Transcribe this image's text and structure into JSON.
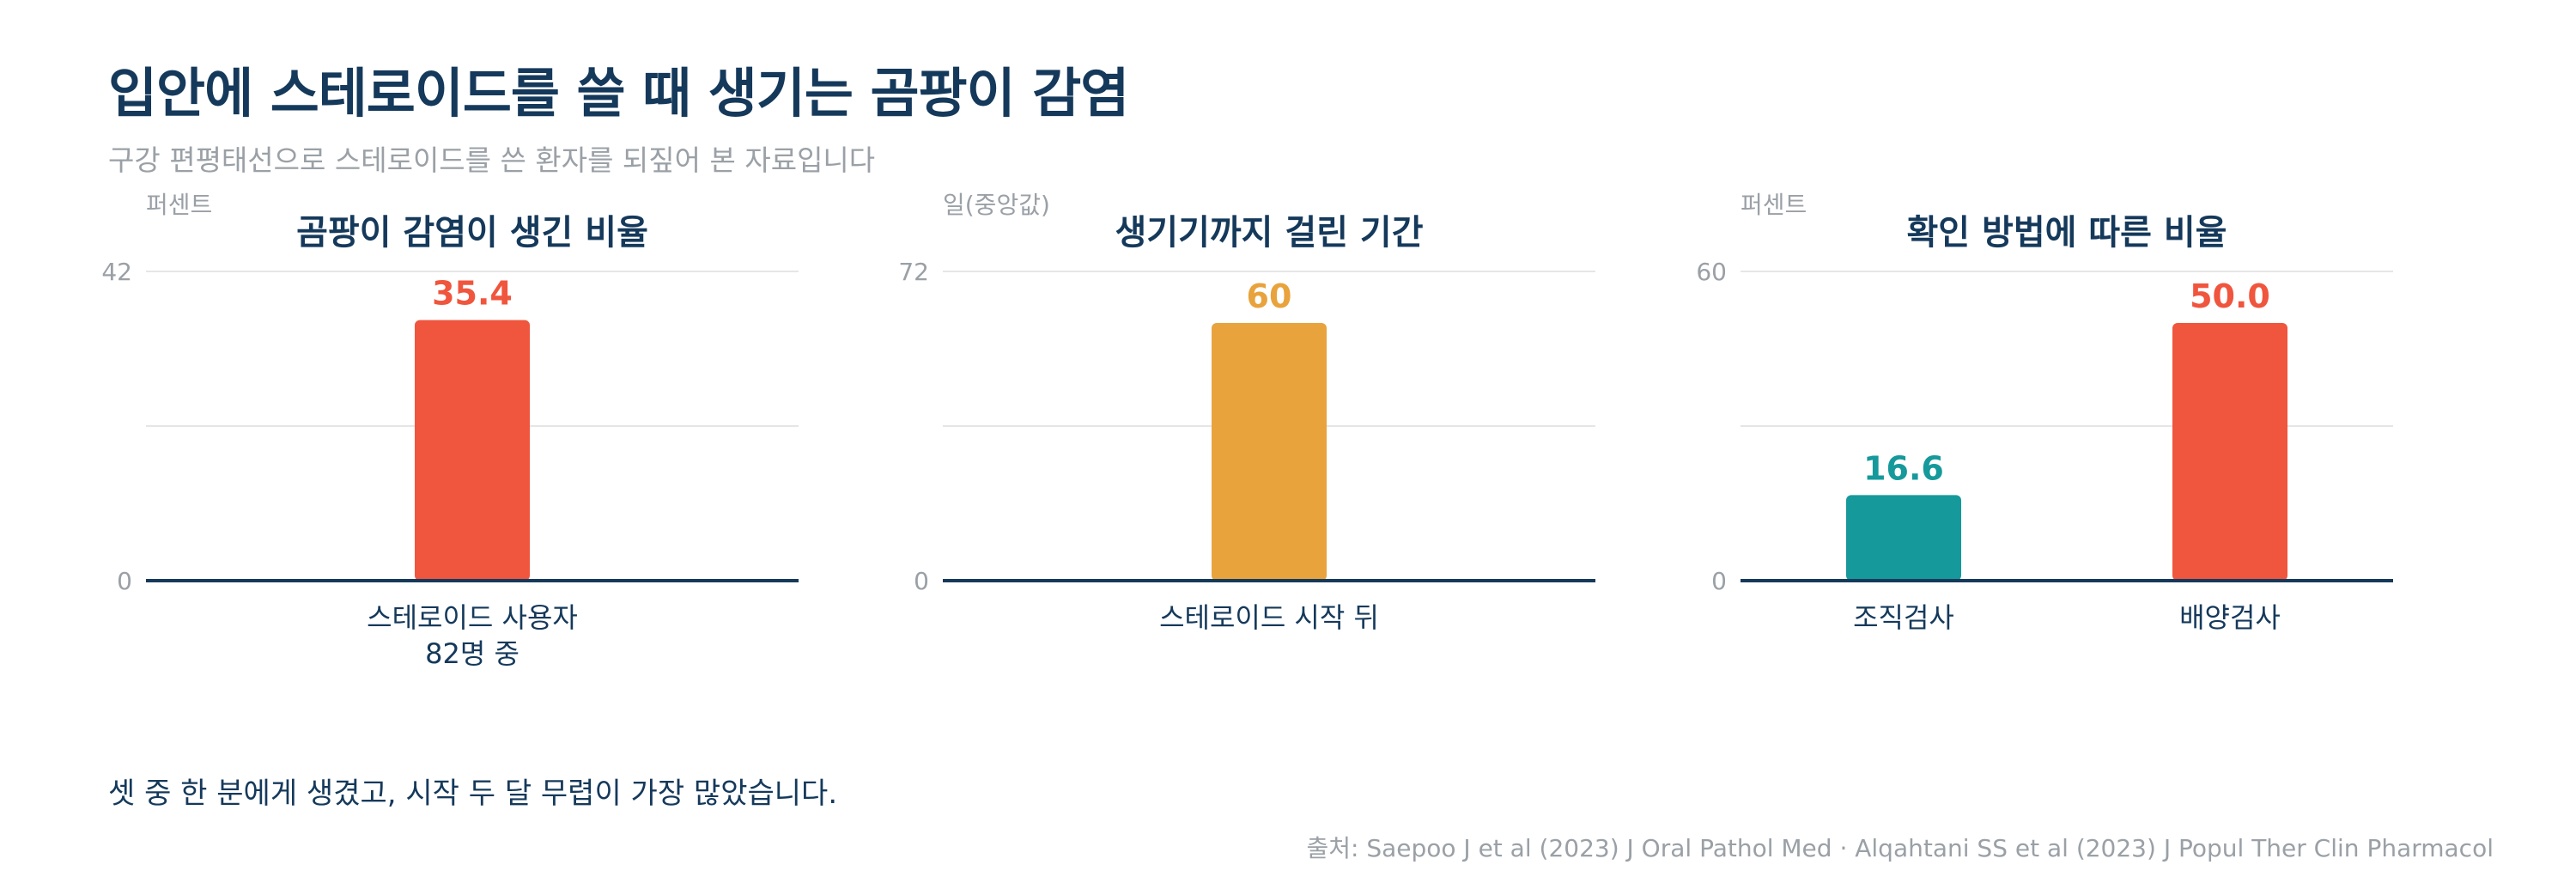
{
  "header": {
    "title": "입안에 스테로이드를 쓸 때 생기는 곰팡이 감염",
    "subtitle": "구강 편평태선으로 스테로이드를 쓴 환자를 되짚어 본 자료입니다"
  },
  "footer": {
    "footnote": "셋 중 한 분에게 생겼고, 시작 두 달 무렵이 가장 많았습니다.",
    "source": "출처: Saepoo J et al (2023) J Oral Pathol Med · Alqahtani SS et al (2023) J Popul Ther Clin Pharmacol"
  },
  "colors": {
    "red": "#f0553d",
    "orange": "#e8a33c",
    "teal": "#16999b",
    "title": "#15395b",
    "muted": "#9aa0a6",
    "axis": "#15395b",
    "grid": "#e6e6e6"
  },
  "chart_data": [
    {
      "type": "bar",
      "title": "곰팡이 감염이 생긴 비율",
      "ylabel": "퍼센트",
      "categories": [
        [
          "스테로이드 사용자",
          "82명 중"
        ]
      ],
      "values": [
        35.4
      ],
      "value_labels": [
        "35.4"
      ],
      "bar_colors": [
        "#f0553d"
      ],
      "ylim": [
        0,
        42
      ],
      "yticks": [
        0,
        42
      ],
      "grid": true
    },
    {
      "type": "bar",
      "title": "생기기까지 걸린 기간",
      "ylabel": "일(중앙값)",
      "categories": [
        [
          "스테로이드 시작 뒤"
        ]
      ],
      "values": [
        60
      ],
      "value_labels": [
        "60"
      ],
      "bar_colors": [
        "#e8a33c"
      ],
      "ylim": [
        0,
        72
      ],
      "yticks": [
        0,
        72
      ],
      "grid": true
    },
    {
      "type": "bar",
      "title": "확인 방법에 따른 비율",
      "ylabel": "퍼센트",
      "categories": [
        [
          "조직검사"
        ],
        [
          "배양검사"
        ]
      ],
      "values": [
        16.6,
        50.0
      ],
      "value_labels": [
        "16.6",
        "50.0"
      ],
      "bar_colors": [
        "#16999b",
        "#f0553d"
      ],
      "ylim": [
        0,
        60
      ],
      "yticks": [
        0,
        60
      ],
      "grid": true
    }
  ]
}
